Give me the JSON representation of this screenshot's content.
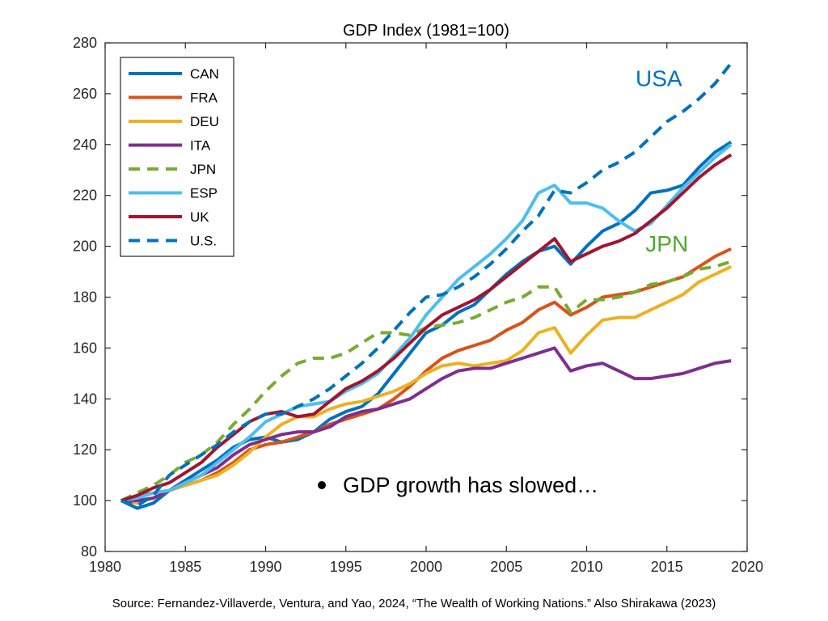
{
  "chart_data": {
    "type": "line",
    "title": "GDP Index  (1981=100)",
    "xlim": [
      1980,
      2020
    ],
    "ylim": [
      80,
      280
    ],
    "xticks": [
      1980,
      1985,
      1990,
      1995,
      2000,
      2005,
      2010,
      2015,
      2020
    ],
    "yticks": [
      80,
      100,
      120,
      140,
      160,
      180,
      200,
      220,
      240,
      260,
      280
    ],
    "legend_position": "top-left",
    "x": [
      1981,
      1982,
      1983,
      1984,
      1985,
      1986,
      1987,
      1988,
      1989,
      1990,
      1991,
      1992,
      1993,
      1994,
      1995,
      1996,
      1997,
      1998,
      1999,
      2000,
      2001,
      2002,
      2003,
      2004,
      2005,
      2006,
      2007,
      2008,
      2009,
      2010,
      2011,
      2012,
      2013,
      2014,
      2015,
      2016,
      2017,
      2018,
      2019
    ],
    "series": [
      {
        "name": "CAN",
        "color": "#0072BD",
        "dash": "solid",
        "values": [
          100,
          97,
          99,
          104,
          108,
          112,
          116,
          121,
          124,
          125,
          123,
          124,
          127,
          132,
          135,
          137,
          142,
          150,
          158,
          166,
          169,
          174,
          177,
          183,
          189,
          194,
          198,
          200,
          193,
          200,
          206,
          209,
          214,
          221,
          222,
          224,
          231,
          237,
          241
        ]
      },
      {
        "name": "FRA",
        "color": "#D95319",
        "dash": "solid",
        "values": [
          100,
          102,
          103,
          104,
          106,
          108,
          111,
          115,
          120,
          122,
          123,
          125,
          127,
          130,
          132,
          134,
          136,
          140,
          145,
          151,
          156,
          159,
          161,
          163,
          167,
          170,
          175,
          178,
          173,
          176,
          180,
          181,
          182,
          184,
          186,
          188,
          192,
          196,
          199
        ]
      },
      {
        "name": "DEU",
        "color": "#EDB120",
        "dash": "solid",
        "values": [
          100,
          99,
          101,
          104,
          106,
          108,
          110,
          114,
          119,
          125,
          130,
          133,
          133,
          136,
          138,
          139,
          141,
          143,
          146,
          150,
          153,
          154,
          153,
          154,
          155,
          159,
          166,
          168,
          158,
          165,
          171,
          172,
          172,
          175,
          178,
          181,
          186,
          189,
          192
        ]
      },
      {
        "name": "ITA",
        "color": "#7E2F8E",
        "dash": "solid",
        "values": [
          100,
          100,
          101,
          104,
          107,
          110,
          113,
          118,
          122,
          124,
          126,
          127,
          127,
          129,
          133,
          135,
          136,
          138,
          140,
          144,
          148,
          151,
          152,
          152,
          154,
          156,
          158,
          160,
          151,
          153,
          154,
          151,
          148,
          148,
          149,
          150,
          152,
          154,
          155
        ]
      },
      {
        "name": "JPN",
        "color": "#77AC30",
        "dash": "dash",
        "values": [
          100,
          103,
          106,
          110,
          115,
          118,
          123,
          130,
          136,
          143,
          149,
          154,
          156,
          156,
          158,
          162,
          166,
          166,
          165,
          168,
          169,
          170,
          172,
          175,
          178,
          180,
          184,
          184,
          174,
          179,
          179,
          180,
          182,
          185,
          186,
          188,
          191,
          192,
          194
        ]
      },
      {
        "name": "ESP",
        "color": "#4DBEEE",
        "dash": "solid",
        "values": [
          100,
          101,
          103,
          104,
          107,
          110,
          115,
          120,
          125,
          131,
          134,
          137,
          138,
          139,
          143,
          146,
          150,
          157,
          164,
          173,
          180,
          187,
          192,
          197,
          203,
          210,
          221,
          224,
          217,
          217,
          215,
          210,
          206,
          209,
          216,
          223,
          229,
          235,
          240
        ]
      },
      {
        "name": "UK",
        "color": "#A2142F",
        "dash": "solid",
        "values": [
          100,
          102,
          105,
          107,
          111,
          115,
          121,
          126,
          131,
          134,
          135,
          133,
          134,
          139,
          144,
          147,
          151,
          156,
          162,
          168,
          173,
          176,
          179,
          183,
          188,
          193,
          198,
          203,
          194,
          197,
          200,
          202,
          205,
          210,
          215,
          221,
          227,
          232,
          236
        ]
      },
      {
        "name": "U.S.",
        "color": "#0072BD",
        "dash": "dash",
        "values": [
          100,
          98,
          102,
          110,
          114,
          118,
          122,
          127,
          131,
          134,
          134,
          137,
          140,
          144,
          149,
          154,
          160,
          167,
          174,
          180,
          181,
          184,
          188,
          193,
          199,
          206,
          212,
          222,
          221,
          225,
          230,
          233,
          237,
          243,
          249,
          253,
          258,
          264,
          272
        ]
      }
    ],
    "annotations": [
      {
        "text": "USA",
        "x": 2014.5,
        "y": 263,
        "color": "#0072BD"
      },
      {
        "text": "JPN",
        "x": 2015,
        "y": 198,
        "color": "#4DAA2B"
      }
    ],
    "bullet": "GDP growth has slowed…"
  },
  "source": "Source: Fernandez-Villaverde, Ventura, and Yao, 2024, “The Wealth of Working Nations.” Also Shirakawa (2023)"
}
